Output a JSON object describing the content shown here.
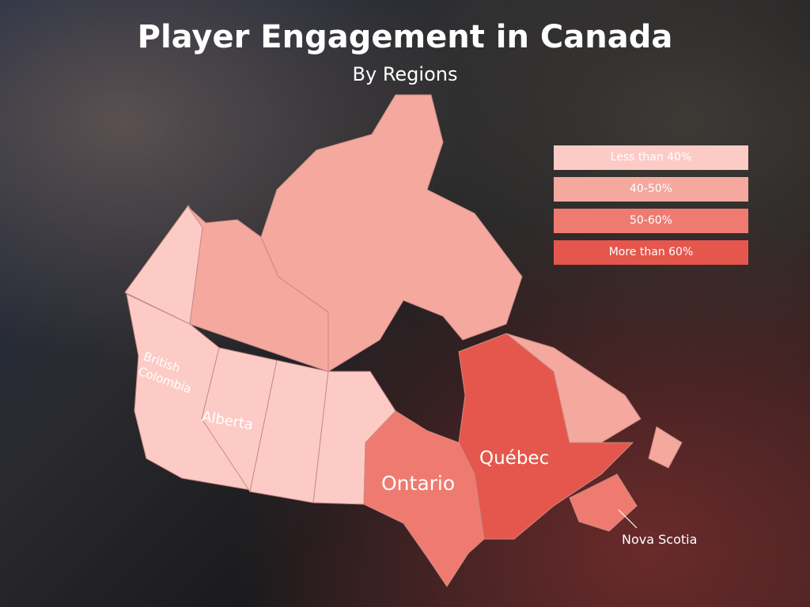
{
  "title": "Player Engagement in Canada",
  "subtitle": "By Regions",
  "legend": [
    {
      "label": "Less than 40%",
      "color": "#fdcbc6"
    },
    {
      "label": "40-50%",
      "color": "#f4a89e"
    },
    {
      "label": "50-60%",
      "color": "#ef7b70"
    },
    {
      "label": "More than 60%",
      "color": "#e5574c"
    }
  ],
  "regions": {
    "yukon": {
      "category": "Less than 40%"
    },
    "british_columbia": {
      "label": "British Colombia",
      "category": "Less than 40%"
    },
    "alberta": {
      "label": "Alberta",
      "category": "Less than 40%"
    },
    "saskatchewan": {
      "category": "Less than 40%"
    },
    "manitoba": {
      "category": "Less than 40%"
    },
    "northwest_territories": {
      "category": "40-50%"
    },
    "nunavut": {
      "category": "40-50%"
    },
    "newfoundland_labrador": {
      "category": "40-50%"
    },
    "ontario": {
      "label": "Ontario",
      "category": "50-60%"
    },
    "quebec": {
      "label": "Québec",
      "category": "More than 60%"
    },
    "nova_scotia": {
      "label": "Nova Scotia",
      "category": "50-60%"
    }
  }
}
